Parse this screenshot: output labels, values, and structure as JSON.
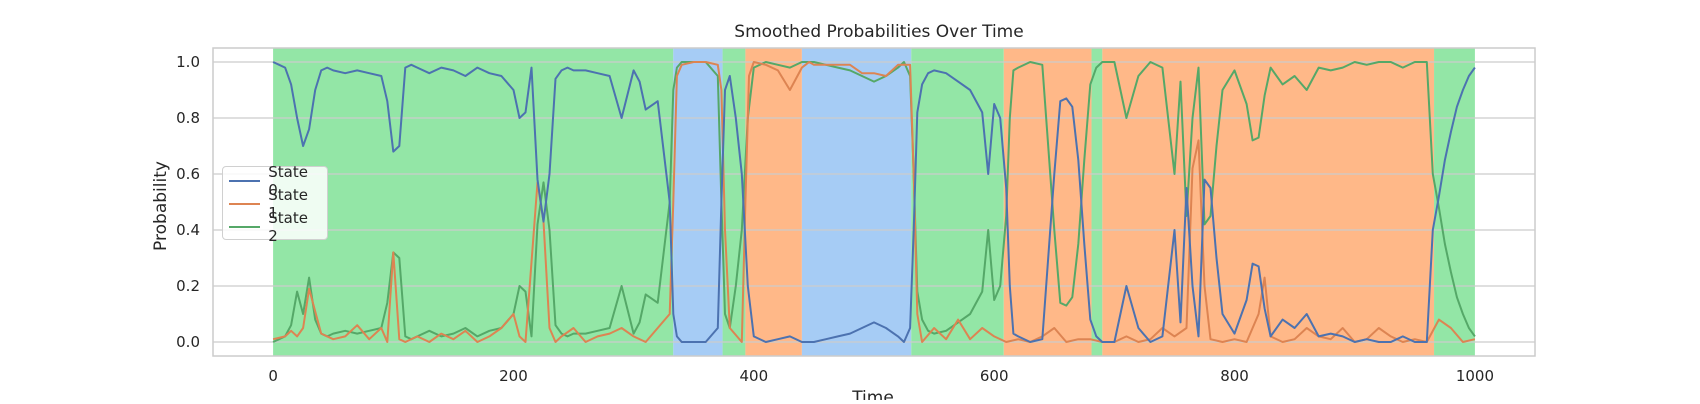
{
  "chart_data": {
    "type": "line",
    "title": "Smoothed Probabilities Over Time",
    "xlabel": "Time",
    "ylabel": "Probability",
    "xlim": [
      -50,
      1050
    ],
    "ylim": [
      -0.05,
      1.05
    ],
    "xticks": [
      0,
      200,
      400,
      600,
      800,
      1000
    ],
    "xtick_labels": [
      "0",
      "200",
      "400",
      "600",
      "800",
      "1000"
    ],
    "yticks": [
      0.0,
      0.2,
      0.4,
      0.6,
      0.8,
      1.0
    ],
    "ytick_labels": [
      "0.0",
      "0.2",
      "0.4",
      "0.6",
      "0.8",
      "1.0"
    ],
    "grid": true,
    "legend_position": "center-left",
    "series": [
      {
        "name": "State 0",
        "color": "#4c72b0",
        "x": [
          0,
          5,
          10,
          15,
          20,
          25,
          30,
          35,
          40,
          45,
          50,
          60,
          70,
          80,
          90,
          95,
          100,
          105,
          110,
          115,
          120,
          130,
          140,
          150,
          160,
          170,
          180,
          190,
          200,
          205,
          210,
          215,
          220,
          225,
          230,
          235,
          240,
          245,
          250,
          260,
          270,
          280,
          290,
          300,
          305,
          310,
          320,
          330,
          333,
          336,
          340,
          350,
          360,
          370,
          373,
          376,
          380,
          385,
          390,
          395,
          400,
          410,
          420,
          430,
          440,
          445,
          450,
          460,
          470,
          480,
          490,
          500,
          510,
          520,
          525,
          530,
          533,
          536,
          540,
          545,
          550,
          560,
          570,
          580,
          590,
          595,
          600,
          605,
          610,
          613,
          616,
          620,
          630,
          640,
          650,
          655,
          660,
          665,
          670,
          675,
          680,
          685,
          690,
          700,
          710,
          720,
          730,
          740,
          750,
          755,
          760,
          765,
          770,
          775,
          780,
          785,
          790,
          800,
          810,
          815,
          820,
          825,
          830,
          840,
          850,
          860,
          870,
          880,
          890,
          900,
          910,
          920,
          930,
          940,
          950,
          960,
          965,
          970,
          975,
          980,
          985,
          990,
          995,
          1000
        ],
        "values": [
          1.0,
          0.99,
          0.98,
          0.92,
          0.8,
          0.7,
          0.76,
          0.9,
          0.97,
          0.98,
          0.97,
          0.96,
          0.97,
          0.96,
          0.95,
          0.86,
          0.68,
          0.7,
          0.98,
          0.99,
          0.98,
          0.96,
          0.98,
          0.97,
          0.95,
          0.98,
          0.96,
          0.95,
          0.9,
          0.8,
          0.82,
          0.98,
          0.58,
          0.43,
          0.6,
          0.94,
          0.97,
          0.98,
          0.97,
          0.97,
          0.96,
          0.95,
          0.8,
          0.97,
          0.93,
          0.83,
          0.86,
          0.5,
          0.1,
          0.02,
          0.0,
          0.0,
          0.0,
          0.05,
          0.5,
          0.9,
          0.95,
          0.8,
          0.6,
          0.2,
          0.02,
          0.0,
          0.01,
          0.02,
          0.0,
          0.0,
          0.0,
          0.01,
          0.02,
          0.03,
          0.05,
          0.07,
          0.05,
          0.02,
          0.0,
          0.05,
          0.4,
          0.82,
          0.92,
          0.96,
          0.97,
          0.96,
          0.93,
          0.9,
          0.82,
          0.6,
          0.85,
          0.8,
          0.55,
          0.2,
          0.03,
          0.02,
          0.0,
          0.01,
          0.6,
          0.86,
          0.87,
          0.84,
          0.65,
          0.35,
          0.08,
          0.02,
          0.0,
          0.0,
          0.2,
          0.05,
          0.0,
          0.02,
          0.4,
          0.07,
          0.55,
          0.2,
          0.02,
          0.58,
          0.55,
          0.3,
          0.1,
          0.03,
          0.15,
          0.28,
          0.27,
          0.12,
          0.02,
          0.08,
          0.05,
          0.1,
          0.02,
          0.03,
          0.02,
          0.0,
          0.01,
          0.0,
          0.0,
          0.02,
          0.0,
          0.0,
          0.4,
          0.52,
          0.65,
          0.75,
          0.84,
          0.9,
          0.95,
          0.98
        ]
      },
      {
        "name": "State 1",
        "color": "#dd8452",
        "x": [
          0,
          10,
          15,
          20,
          25,
          30,
          40,
          50,
          60,
          70,
          80,
          90,
          95,
          100,
          105,
          110,
          120,
          130,
          140,
          150,
          160,
          170,
          180,
          190,
          200,
          205,
          210,
          220,
          225,
          230,
          235,
          240,
          250,
          260,
          270,
          280,
          290,
          300,
          310,
          320,
          330,
          333,
          336,
          340,
          350,
          360,
          370,
          373,
          376,
          380,
          390,
          393,
          396,
          400,
          410,
          420,
          430,
          440,
          443,
          446,
          450,
          460,
          470,
          480,
          490,
          500,
          510,
          520,
          530,
          533,
          536,
          540,
          550,
          560,
          570,
          580,
          590,
          600,
          610,
          620,
          630,
          640,
          650,
          660,
          670,
          680,
          690,
          700,
          710,
          720,
          730,
          740,
          750,
          760,
          765,
          770,
          775,
          780,
          790,
          800,
          810,
          820,
          825,
          830,
          840,
          850,
          860,
          870,
          880,
          890,
          900,
          910,
          920,
          930,
          940,
          950,
          960,
          970,
          980,
          990,
          1000
        ],
        "values": [
          0.01,
          0.02,
          0.04,
          0.02,
          0.05,
          0.19,
          0.03,
          0.01,
          0.02,
          0.06,
          0.01,
          0.05,
          0.0,
          0.32,
          0.01,
          0.0,
          0.02,
          0.0,
          0.03,
          0.01,
          0.04,
          0.0,
          0.02,
          0.05,
          0.1,
          0.02,
          0.0,
          0.57,
          0.43,
          0.05,
          0.0,
          0.02,
          0.05,
          0.0,
          0.02,
          0.03,
          0.05,
          0.02,
          0.0,
          0.05,
          0.1,
          0.5,
          0.95,
          0.99,
          1.0,
          1.0,
          0.99,
          0.9,
          0.4,
          0.05,
          0.0,
          0.5,
          0.95,
          1.0,
          0.99,
          0.97,
          0.9,
          0.98,
          0.99,
          1.0,
          0.99,
          0.99,
          0.99,
          0.99,
          0.96,
          0.96,
          0.95,
          0.99,
          0.99,
          0.6,
          0.1,
          0.0,
          0.05,
          0.01,
          0.08,
          0.01,
          0.05,
          0.02,
          0.0,
          0.01,
          0.0,
          0.02,
          0.05,
          0.0,
          0.01,
          0.01,
          0.0,
          0.0,
          0.02,
          0.0,
          0.01,
          0.05,
          0.02,
          0.05,
          0.62,
          0.72,
          0.2,
          0.01,
          0.0,
          0.01,
          0.0,
          0.1,
          0.23,
          0.02,
          0.0,
          0.01,
          0.05,
          0.02,
          0.01,
          0.05,
          0.0,
          0.01,
          0.05,
          0.02,
          0.0,
          0.01,
          0.0,
          0.08,
          0.05,
          0.0,
          0.01
        ]
      },
      {
        "name": "State 2",
        "color": "#55a868",
        "x": [
          0,
          5,
          10,
          15,
          20,
          25,
          30,
          35,
          40,
          45,
          50,
          60,
          70,
          80,
          90,
          95,
          100,
          105,
          110,
          115,
          120,
          130,
          140,
          150,
          160,
          170,
          180,
          190,
          200,
          205,
          210,
          215,
          220,
          225,
          230,
          235,
          240,
          245,
          250,
          260,
          270,
          280,
          290,
          300,
          305,
          310,
          320,
          330,
          333,
          336,
          340,
          350,
          360,
          370,
          373,
          376,
          380,
          385,
          390,
          395,
          400,
          410,
          420,
          430,
          440,
          445,
          450,
          460,
          470,
          480,
          490,
          500,
          510,
          520,
          525,
          530,
          533,
          536,
          540,
          545,
          550,
          560,
          570,
          580,
          590,
          595,
          600,
          605,
          610,
          613,
          616,
          620,
          630,
          640,
          650,
          655,
          660,
          665,
          670,
          675,
          680,
          685,
          690,
          700,
          710,
          720,
          730,
          740,
          750,
          755,
          760,
          765,
          770,
          775,
          780,
          785,
          790,
          800,
          810,
          815,
          820,
          825,
          830,
          840,
          850,
          860,
          870,
          880,
          890,
          900,
          910,
          920,
          930,
          940,
          950,
          960,
          965,
          970,
          975,
          980,
          985,
          990,
          995,
          1000
        ],
        "values": [
          0.0,
          0.01,
          0.02,
          0.06,
          0.18,
          0.1,
          0.23,
          0.08,
          0.03,
          0.02,
          0.03,
          0.04,
          0.03,
          0.04,
          0.05,
          0.14,
          0.32,
          0.3,
          0.02,
          0.01,
          0.02,
          0.04,
          0.02,
          0.03,
          0.05,
          0.02,
          0.04,
          0.05,
          0.1,
          0.2,
          0.18,
          0.02,
          0.42,
          0.57,
          0.4,
          0.06,
          0.03,
          0.02,
          0.03,
          0.03,
          0.04,
          0.05,
          0.2,
          0.03,
          0.07,
          0.17,
          0.14,
          0.5,
          0.9,
          0.98,
          1.0,
          1.0,
          1.0,
          0.95,
          0.5,
          0.1,
          0.05,
          0.2,
          0.4,
          0.8,
          0.98,
          1.0,
          0.99,
          0.98,
          1.0,
          1.0,
          1.0,
          0.99,
          0.98,
          0.97,
          0.95,
          0.93,
          0.95,
          0.98,
          1.0,
          0.95,
          0.6,
          0.18,
          0.08,
          0.04,
          0.03,
          0.04,
          0.07,
          0.1,
          0.18,
          0.4,
          0.15,
          0.2,
          0.45,
          0.8,
          0.97,
          0.98,
          1.0,
          0.99,
          0.4,
          0.14,
          0.13,
          0.16,
          0.35,
          0.65,
          0.92,
          0.98,
          1.0,
          1.0,
          0.8,
          0.95,
          1.0,
          0.98,
          0.6,
          0.93,
          0.45,
          0.8,
          0.98,
          0.42,
          0.45,
          0.7,
          0.9,
          0.97,
          0.85,
          0.72,
          0.73,
          0.88,
          0.98,
          0.92,
          0.95,
          0.9,
          0.98,
          0.97,
          0.98,
          1.0,
          0.99,
          1.0,
          1.0,
          0.98,
          1.0,
          1.0,
          0.6,
          0.48,
          0.35,
          0.25,
          0.16,
          0.1,
          0.05,
          0.02
        ]
      }
    ],
    "regime_shading": {
      "description_colors": {
        "0": "#a1c9f4",
        "1": "#ffb482",
        "2": "#8de5a1"
      },
      "segments": [
        {
          "start": 0,
          "end": 333,
          "state": "2"
        },
        {
          "start": 333,
          "end": 374,
          "state": "0"
        },
        {
          "start": 374,
          "end": 393,
          "state": "2"
        },
        {
          "start": 393,
          "end": 440,
          "state": "1"
        },
        {
          "start": 440,
          "end": 531,
          "state": "0"
        },
        {
          "start": 531,
          "end": 608,
          "state": "2"
        },
        {
          "start": 608,
          "end": 681,
          "state": "1"
        },
        {
          "start": 681,
          "end": 690,
          "state": "2"
        },
        {
          "start": 690,
          "end": 966,
          "state": "1"
        },
        {
          "start": 966,
          "end": 1000,
          "state": "2"
        }
      ]
    }
  }
}
